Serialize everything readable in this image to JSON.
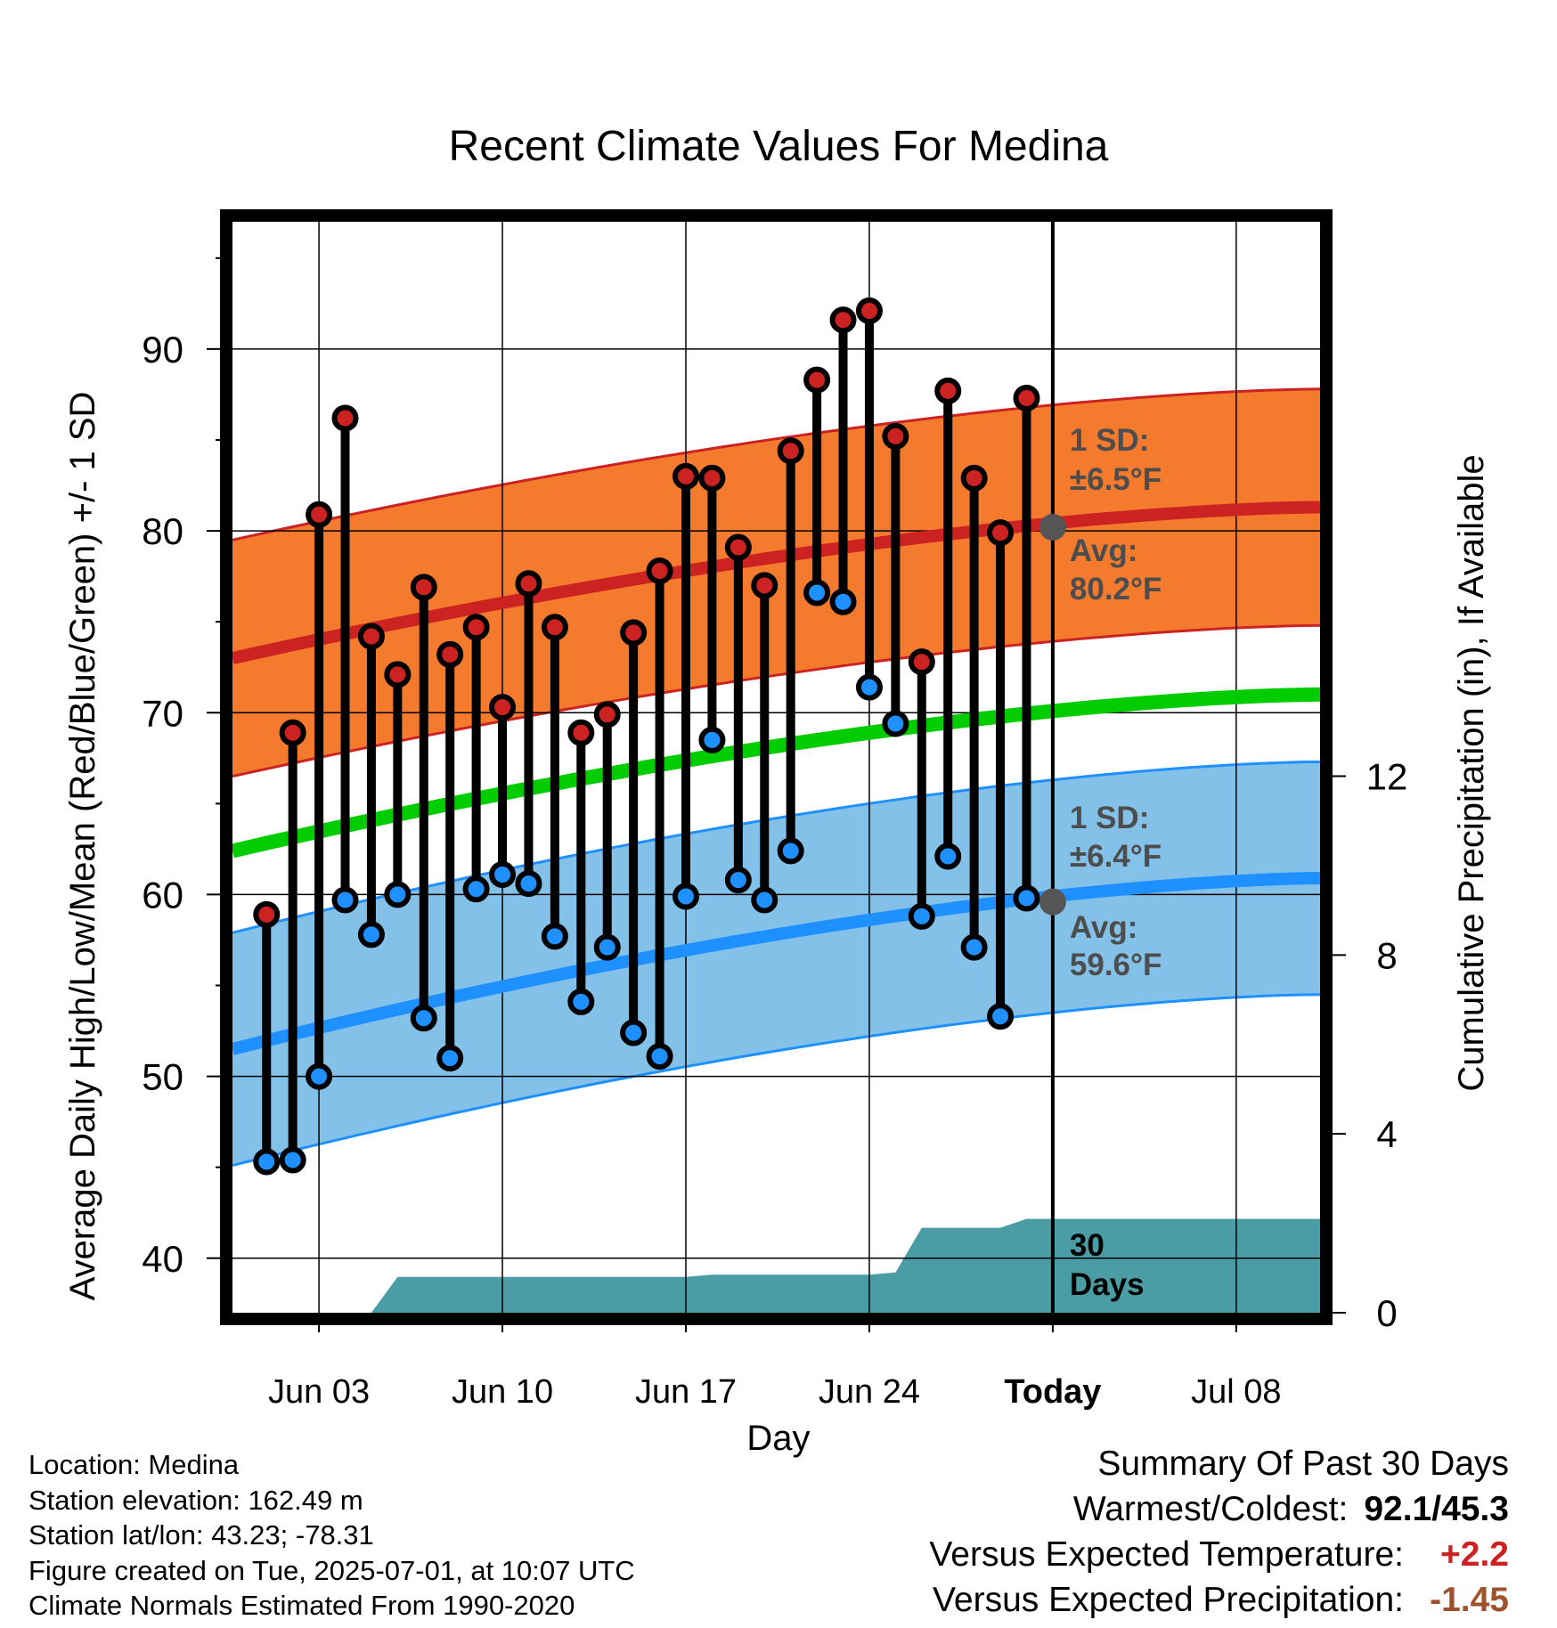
{
  "chart_data": {
    "type": "line",
    "title": "Recent Climate Values For Medina",
    "xlabel": "Day",
    "ylabel_left": "Average Daily High/Low/Mean (Red/Blue/Green) +/- 1 SD",
    "ylabel_right": "Cumulative Precipitation (in), If Available",
    "ylim_left": [
      37,
      97
    ],
    "yticks_left": [
      40,
      50,
      60,
      70,
      80,
      90
    ],
    "ylim_right": [
      0,
      24.4
    ],
    "yticks_right": [
      0,
      4,
      8,
      12
    ],
    "x_tick_labels": [
      "Jun 03",
      "Jun 10",
      "Jun 17",
      "Jun 24",
      "Today",
      "Jul 08"
    ],
    "x_tick_days": [
      3,
      10,
      17,
      24,
      31,
      38
    ],
    "xlim_days": [
      -0.3,
      41.2
    ],
    "today_day": 31,
    "grid": true,
    "days": [
      1,
      2,
      3,
      4,
      5,
      6,
      7,
      8,
      9,
      10,
      11,
      12,
      13,
      14,
      15,
      16,
      17,
      18,
      19,
      20,
      21,
      22,
      23,
      24,
      25,
      26,
      27,
      28,
      29,
      30
    ],
    "series": [
      {
        "name": "High",
        "color": "#cc2222",
        "values": [
          58.9,
          68.9,
          80.9,
          86.2,
          74.2,
          72.1,
          76.9,
          73.2,
          74.7,
          70.3,
          77.1,
          74.7,
          68.9,
          69.9,
          74.4,
          77.8,
          83.0,
          82.9,
          79.1,
          77.0,
          84.4,
          88.3,
          91.6,
          92.1,
          85.2,
          72.8,
          87.7,
          82.9,
          79.9,
          87.3
        ]
      },
      {
        "name": "Low",
        "color": "#1e90ff",
        "values": [
          45.3,
          45.4,
          50.0,
          59.7,
          57.8,
          60.0,
          53.2,
          51.0,
          60.3,
          61.1,
          60.6,
          57.7,
          54.1,
          57.1,
          52.4,
          51.1,
          59.9,
          68.5,
          60.8,
          59.7,
          62.4,
          76.6,
          76.1,
          71.4,
          69.4,
          58.8,
          62.1,
          57.1,
          53.3,
          59.8
        ]
      }
    ],
    "normals": {
      "high_avg": [
        73.0,
        81.3
      ],
      "high_sd": 6.5,
      "low_avg": [
        51.5,
        60.9
      ],
      "low_sd": 6.4,
      "mean_avg": [
        62.4,
        71.0
      ]
    },
    "precip_cumulative": {
      "days": [
        -0.3,
        5.0,
        6.0,
        17.0,
        18.0,
        24.0,
        25.0,
        26.0,
        29.0,
        30.0,
        41.2
      ],
      "values": [
        0,
        0,
        0.8,
        0.8,
        0.85,
        0.85,
        0.9,
        1.9,
        1.9,
        2.1,
        2.1
      ]
    },
    "annotations": {
      "high_sd_label": "1 SD:",
      "high_sd_value": "±6.5°F",
      "high_avg_label": "Avg:",
      "high_avg_value": "80.2°F",
      "low_sd_label": "1 SD:",
      "low_sd_value": "±6.4°F",
      "low_avg_label": "Avg:",
      "low_avg_value": "59.6°F",
      "today_high_avg": 80.2,
      "today_low_avg": 59.6,
      "precip_label_1": "30",
      "precip_label_2": "Days"
    }
  },
  "info": {
    "location": "Location: Medina",
    "elevation": "Station elevation: 162.49 m",
    "latlon": "Station lat/lon: 43.23; -78.31",
    "created": "Figure created on Tue, 2025-07-01, at 10:07 UTC",
    "normals": "Climate Normals Estimated From 1990-2020"
  },
  "summary": {
    "title": "Summary Of Past 30 Days",
    "warmest_label": "Warmest/Coldest:",
    "warmest_value": "92.1/45.3",
    "temp_label": "Versus Expected Temperature:",
    "temp_value": "+2.2",
    "temp_color": "#cc2222",
    "precip_label": "Versus Expected Precipitation:",
    "precip_value": "-1.45",
    "precip_color": "#a0522d"
  }
}
